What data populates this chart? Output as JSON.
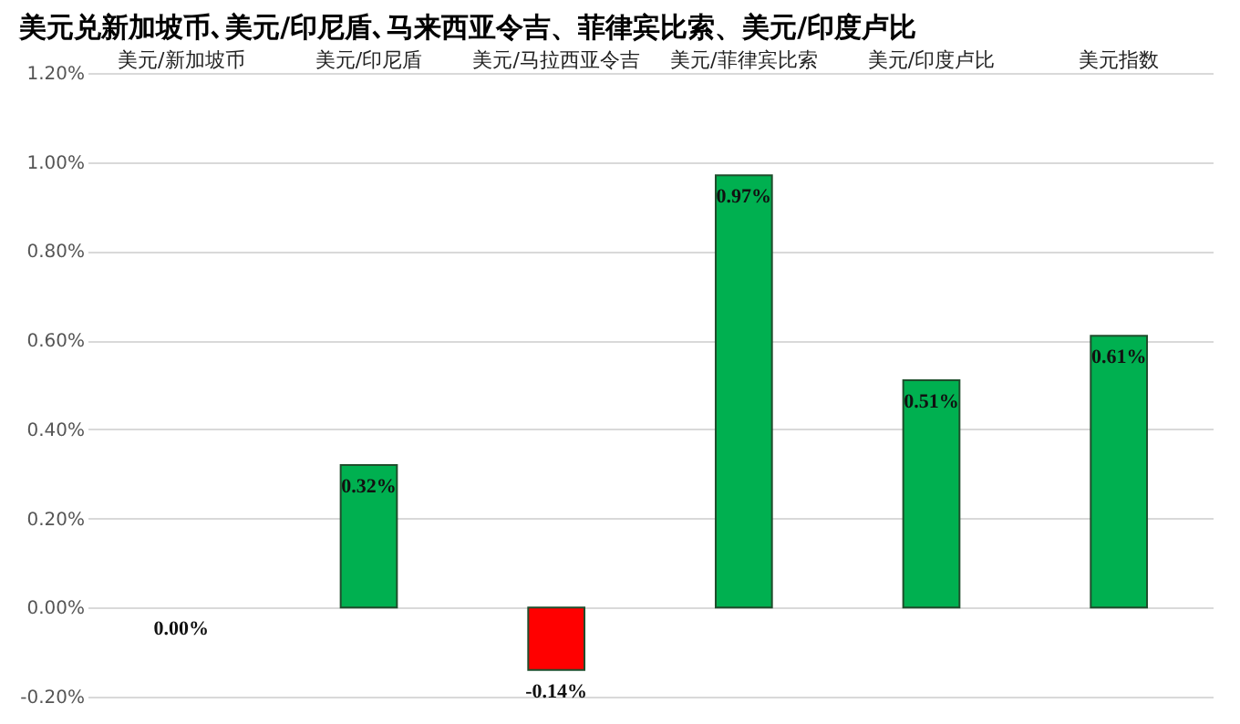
{
  "chart_data": {
    "type": "bar",
    "title": "美元兑新加坡币､美元/印尼盾､马来西亚令吉、菲律宾比索、美元/印度卢比",
    "categories": [
      "美元/新加坡币",
      "美元/印尼盾",
      "美元/马拉西亚令吉",
      "美元/菲律宾比索",
      "美元/印度卢比",
      "美元指数"
    ],
    "values": [
      0.0,
      0.32,
      -0.14,
      0.97,
      0.51,
      0.61
    ],
    "colors": [
      "#00b050",
      "#00b050",
      "#ff0000",
      "#00b050",
      "#00b050",
      "#00b050"
    ],
    "value_labels": [
      "0.00%",
      "0.32%",
      "-0.14%",
      "0.97%",
      "0.51%",
      "0.61%"
    ],
    "ylim": [
      -0.2,
      1.2
    ],
    "yticks": [
      {
        "value": -0.2,
        "label": "-0.20%"
      },
      {
        "value": 0,
        "label": "0.00%"
      },
      {
        "value": 0.2,
        "label": "0.20%"
      },
      {
        "value": 0.4,
        "label": "0.40%"
      },
      {
        "value": 0.6,
        "label": "0.60%"
      },
      {
        "value": 0.8,
        "label": "0.80%"
      },
      {
        "value": 1.0,
        "label": "1.00%"
      },
      {
        "value": 1.2,
        "label": "1.20%"
      }
    ],
    "grid": "y"
  }
}
